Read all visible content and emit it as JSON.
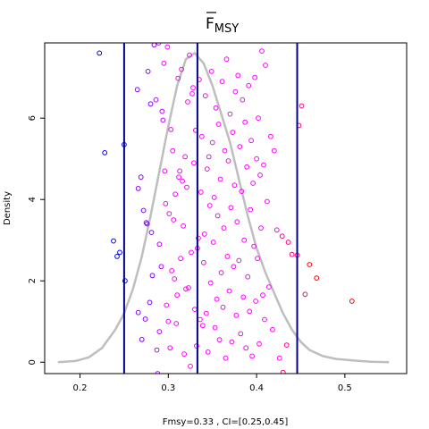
{
  "chart_data": {
    "type": "scatter",
    "title_main": "F",
    "title_sub": "MSY",
    "title_overline": true,
    "xlabel": "Fmsy=0.33 , CI=[0.25,0.45]",
    "ylabel": "Density",
    "xlim": [
      0.16,
      0.57
    ],
    "ylim": [
      -0.28,
      7.85
    ],
    "x_ticks": [
      0.2,
      0.3,
      0.4,
      0.5
    ],
    "x_tick_labels": [
      "0.2",
      "0.3",
      "0.4",
      "0.5"
    ],
    "y_ticks": [
      0,
      2,
      4,
      6
    ],
    "y_tick_labels": [
      "0",
      "2",
      "4",
      "6"
    ],
    "vertical_lines": [
      0.25,
      0.333,
      0.446
    ],
    "vline_color": "#00008b",
    "density_color": "#bebebe",
    "point_color_low": "#0000ff",
    "point_color_mid": "#ff00ff",
    "point_color_high": "#ff0000",
    "density_curve": [
      {
        "x": 0.175,
        "y": 0.0
      },
      {
        "x": 0.195,
        "y": 0.03
      },
      {
        "x": 0.21,
        "y": 0.12
      },
      {
        "x": 0.225,
        "y": 0.35
      },
      {
        "x": 0.24,
        "y": 0.8
      },
      {
        "x": 0.25,
        "y": 1.2
      },
      {
        "x": 0.26,
        "y": 1.8
      },
      {
        "x": 0.27,
        "y": 2.6
      },
      {
        "x": 0.28,
        "y": 3.6
      },
      {
        "x": 0.29,
        "y": 4.7
      },
      {
        "x": 0.3,
        "y": 5.8
      },
      {
        "x": 0.31,
        "y": 6.8
      },
      {
        "x": 0.32,
        "y": 7.45
      },
      {
        "x": 0.33,
        "y": 7.6
      },
      {
        "x": 0.34,
        "y": 7.35
      },
      {
        "x": 0.35,
        "y": 6.8
      },
      {
        "x": 0.36,
        "y": 6.1
      },
      {
        "x": 0.37,
        "y": 5.4
      },
      {
        "x": 0.38,
        "y": 4.5
      },
      {
        "x": 0.39,
        "y": 3.6
      },
      {
        "x": 0.4,
        "y": 2.8
      },
      {
        "x": 0.41,
        "y": 2.2
      },
      {
        "x": 0.42,
        "y": 1.7
      },
      {
        "x": 0.43,
        "y": 1.2
      },
      {
        "x": 0.44,
        "y": 0.8
      },
      {
        "x": 0.45,
        "y": 0.5
      },
      {
        "x": 0.46,
        "y": 0.3
      },
      {
        "x": 0.475,
        "y": 0.15
      },
      {
        "x": 0.49,
        "y": 0.08
      },
      {
        "x": 0.51,
        "y": 0.04
      },
      {
        "x": 0.53,
        "y": 0.01
      },
      {
        "x": 0.55,
        "y": 0.0
      }
    ],
    "points": [
      {
        "x": 0.222,
        "y": 7.6
      },
      {
        "x": 0.228,
        "y": 5.15
      },
      {
        "x": 0.238,
        "y": 2.98
      },
      {
        "x": 0.242,
        "y": 2.6
      },
      {
        "x": 0.245,
        "y": 2.7
      },
      {
        "x": 0.25,
        "y": 5.35
      },
      {
        "x": 0.251,
        "y": 2.0
      },
      {
        "x": 0.265,
        "y": 6.7
      },
      {
        "x": 0.266,
        "y": 1.22
      },
      {
        "x": 0.266,
        "y": 4.27
      },
      {
        "x": 0.269,
        "y": 4.55
      },
      {
        "x": 0.27,
        "y": 0.56
      },
      {
        "x": 0.272,
        "y": 3.73
      },
      {
        "x": 0.274,
        "y": 1.06
      },
      {
        "x": 0.275,
        "y": 3.43
      },
      {
        "x": 0.276,
        "y": 3.4
      },
      {
        "x": 0.277,
        "y": 7.15
      },
      {
        "x": 0.279,
        "y": 1.47
      },
      {
        "x": 0.28,
        "y": 6.35
      },
      {
        "x": 0.281,
        "y": 3.19
      },
      {
        "x": 0.282,
        "y": 2.13
      },
      {
        "x": 0.284,
        "y": 7.8
      },
      {
        "x": 0.286,
        "y": 6.45
      },
      {
        "x": 0.287,
        "y": 0.3
      },
      {
        "x": 0.288,
        "y": -0.28
      },
      {
        "x": 0.289,
        "y": 7.85
      },
      {
        "x": 0.29,
        "y": 2.9
      },
      {
        "x": 0.29,
        "y": 0.75
      },
      {
        "x": 0.292,
        "y": 2.35
      },
      {
        "x": 0.293,
        "y": 6.17
      },
      {
        "x": 0.294,
        "y": 5.95
      },
      {
        "x": 0.295,
        "y": 7.35
      },
      {
        "x": 0.296,
        "y": 4.7
      },
      {
        "x": 0.297,
        "y": 3.9
      },
      {
        "x": 0.298,
        "y": 1.4
      },
      {
        "x": 0.299,
        "y": 7.75
      },
      {
        "x": 0.3,
        "y": 1.0
      },
      {
        "x": 0.301,
        "y": 3.65
      },
      {
        "x": 0.302,
        "y": 0.35
      },
      {
        "x": 0.303,
        "y": 5.72
      },
      {
        "x": 0.304,
        "y": 2.25
      },
      {
        "x": 0.305,
        "y": 5.2
      },
      {
        "x": 0.306,
        "y": 3.5
      },
      {
        "x": 0.307,
        "y": 2.05
      },
      {
        "x": 0.308,
        "y": 4.13
      },
      {
        "x": 0.309,
        "y": 0.95
      },
      {
        "x": 0.31,
        "y": 1.65
      },
      {
        "x": 0.311,
        "y": 6.98
      },
      {
        "x": 0.312,
        "y": 4.55
      },
      {
        "x": 0.313,
        "y": 4.7
      },
      {
        "x": 0.314,
        "y": 2.55
      },
      {
        "x": 0.315,
        "y": 7.2
      },
      {
        "x": 0.316,
        "y": 4.45
      },
      {
        "x": 0.317,
        "y": 3.35
      },
      {
        "x": 0.318,
        "y": 0.2
      },
      {
        "x": 0.319,
        "y": 5.05
      },
      {
        "x": 0.32,
        "y": 1.8
      },
      {
        "x": 0.321,
        "y": 4.3
      },
      {
        "x": 0.322,
        "y": 6.4
      },
      {
        "x": 0.323,
        "y": 1.83
      },
      {
        "x": 0.324,
        "y": 7.55
      },
      {
        "x": 0.325,
        "y": -0.1
      },
      {
        "x": 0.326,
        "y": 2.7
      },
      {
        "x": 0.327,
        "y": 6.6
      },
      {
        "x": 0.328,
        "y": 6.75
      },
      {
        "x": 0.329,
        "y": 4.9
      },
      {
        "x": 0.33,
        "y": 1.3
      },
      {
        "x": 0.331,
        "y": 5.7
      },
      {
        "x": 0.332,
        "y": 0.4
      },
      {
        "x": 0.333,
        "y": 2.8
      },
      {
        "x": 0.334,
        "y": 3.05
      },
      {
        "x": 0.335,
        "y": 6.95
      },
      {
        "x": 0.336,
        "y": 1.05
      },
      {
        "x": 0.337,
        "y": 4.18
      },
      {
        "x": 0.338,
        "y": 5.55
      },
      {
        "x": 0.339,
        "y": 0.9
      },
      {
        "x": 0.34,
        "y": 2.45
      },
      {
        "x": 0.341,
        "y": 3.15
      },
      {
        "x": 0.342,
        "y": 6.55
      },
      {
        "x": 0.343,
        "y": 1.2
      },
      {
        "x": 0.344,
        "y": 4.75
      },
      {
        "x": 0.345,
        "y": 0.25
      },
      {
        "x": 0.346,
        "y": 5.05
      },
      {
        "x": 0.347,
        "y": 3.85
      },
      {
        "x": 0.348,
        "y": 1.95
      },
      {
        "x": 0.349,
        "y": 7.15
      },
      {
        "x": 0.35,
        "y": 5.4
      },
      {
        "x": 0.351,
        "y": 2.95
      },
      {
        "x": 0.352,
        "y": 4.05
      },
      {
        "x": 0.353,
        "y": 0.85
      },
      {
        "x": 0.354,
        "y": 6.25
      },
      {
        "x": 0.355,
        "y": 1.55
      },
      {
        "x": 0.356,
        "y": 3.6
      },
      {
        "x": 0.357,
        "y": 5.85
      },
      {
        "x": 0.358,
        "y": 0.55
      },
      {
        "x": 0.359,
        "y": 4.5
      },
      {
        "x": 0.36,
        "y": 2.2
      },
      {
        "x": 0.361,
        "y": 6.9
      },
      {
        "x": 0.362,
        "y": 1.35
      },
      {
        "x": 0.363,
        "y": 3.3
      },
      {
        "x": 0.364,
        "y": 5.2
      },
      {
        "x": 0.365,
        "y": 0.1
      },
      {
        "x": 0.366,
        "y": 7.45
      },
      {
        "x": 0.367,
        "y": 2.6
      },
      {
        "x": 0.368,
        "y": 4.95
      },
      {
        "x": 0.369,
        "y": 1.75
      },
      {
        "x": 0.37,
        "y": 6.1
      },
      {
        "x": 0.371,
        "y": 3.8
      },
      {
        "x": 0.372,
        "y": 0.5
      },
      {
        "x": 0.373,
        "y": 5.65
      },
      {
        "x": 0.374,
        "y": 2.35
      },
      {
        "x": 0.375,
        "y": 4.35
      },
      {
        "x": 0.376,
        "y": 6.65
      },
      {
        "x": 0.377,
        "y": 1.15
      },
      {
        "x": 0.378,
        "y": 3.45
      },
      {
        "x": 0.379,
        "y": 7.05
      },
      {
        "x": 0.38,
        "y": 2.5
      },
      {
        "x": 0.381,
        "y": 5.3
      },
      {
        "x": 0.382,
        "y": 0.7
      },
      {
        "x": 0.383,
        "y": 4.2
      },
      {
        "x": 0.384,
        "y": 6.45
      },
      {
        "x": 0.385,
        "y": 1.6
      },
      {
        "x": 0.386,
        "y": 3.0
      },
      {
        "x": 0.387,
        "y": 5.9
      },
      {
        "x": 0.388,
        "y": 0.35
      },
      {
        "x": 0.389,
        "y": 4.8
      },
      {
        "x": 0.39,
        "y": 2.1
      },
      {
        "x": 0.391,
        "y": 6.8
      },
      {
        "x": 0.392,
        "y": 1.25
      },
      {
        "x": 0.393,
        "y": 3.75
      },
      {
        "x": 0.394,
        "y": 5.45
      },
      {
        "x": 0.395,
        "y": 0.15
      },
      {
        "x": 0.396,
        "y": 4.4
      },
      {
        "x": 0.397,
        "y": 2.85
      },
      {
        "x": 0.398,
        "y": 7.0
      },
      {
        "x": 0.399,
        "y": 1.5
      },
      {
        "x": 0.4,
        "y": 5.0
      },
      {
        "x": 0.401,
        "y": 2.55
      },
      {
        "x": 0.402,
        "y": 6.0
      },
      {
        "x": 0.403,
        "y": 0.45
      },
      {
        "x": 0.404,
        "y": 4.6
      },
      {
        "x": 0.405,
        "y": 3.3
      },
      {
        "x": 0.406,
        "y": 7.65
      },
      {
        "x": 0.407,
        "y": 1.65
      },
      {
        "x": 0.408,
        "y": 4.85
      },
      {
        "x": 0.409,
        "y": 1.05
      },
      {
        "x": 0.41,
        "y": 7.3
      },
      {
        "x": 0.412,
        "y": 3.95
      },
      {
        "x": 0.414,
        "y": 1.85
      },
      {
        "x": 0.416,
        "y": 5.55
      },
      {
        "x": 0.418,
        "y": 0.8
      },
      {
        "x": 0.42,
        "y": 5.2
      },
      {
        "x": 0.423,
        "y": 3.25
      },
      {
        "x": 0.426,
        "y": 0.1
      },
      {
        "x": 0.429,
        "y": 3.1
      },
      {
        "x": 0.43,
        "y": -0.25
      },
      {
        "x": 0.434,
        "y": 0.42
      },
      {
        "x": 0.436,
        "y": 2.95
      },
      {
        "x": 0.44,
        "y": 2.65
      },
      {
        "x": 0.446,
        "y": 2.63
      },
      {
        "x": 0.448,
        "y": 5.82
      },
      {
        "x": 0.451,
        "y": 6.3
      },
      {
        "x": 0.455,
        "y": 1.67
      },
      {
        "x": 0.46,
        "y": 2.4
      },
      {
        "x": 0.468,
        "y": 2.07
      },
      {
        "x": 0.508,
        "y": 1.5
      }
    ]
  }
}
